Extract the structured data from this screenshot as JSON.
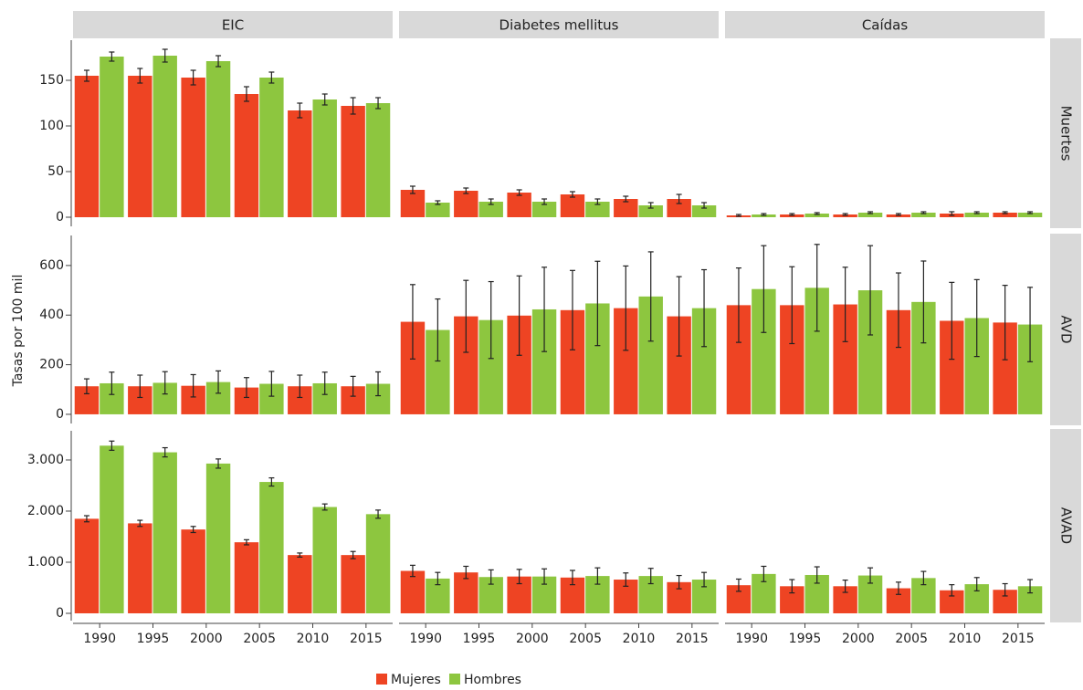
{
  "chart_data": {
    "type": "bar",
    "ylabel": "Tasas por 100 mil",
    "columns": [
      "EIC",
      "Diabetes mellitus",
      "Caídas"
    ],
    "categories": [
      "1990",
      "1995",
      "2000",
      "2005",
      "2010",
      "2015"
    ],
    "series": [
      {
        "name": "Mujeres",
        "color": "#ee4423"
      },
      {
        "name": "Hombres",
        "color": "#8dc63f"
      }
    ],
    "legend": "bottom",
    "rows": [
      {
        "label": "Muertes",
        "ylim": [
          -10,
          194
        ],
        "yticks": [
          0,
          50,
          100,
          150
        ]
      },
      {
        "label": "AVD",
        "ylim": [
          -37,
          721
        ],
        "yticks": [
          0,
          200,
          400,
          600
        ]
      },
      {
        "label": "AVAD",
        "ylim": [
          -143,
          3571
        ],
        "yticks": [
          0,
          {
            "value": 1000,
            "label": "1.000"
          },
          {
            "value": 2000,
            "label": "2.000"
          },
          {
            "value": 3000,
            "label": "3.000"
          }
        ]
      }
    ],
    "panels": [
      [
        {
          "values": [
            [
              155,
              155,
              153,
              135,
              117,
              122
            ],
            [
              176,
              177,
              171,
              153,
              129,
              125
            ]
          ],
          "errors": [
            [
              6,
              8,
              8,
              8,
              8,
              9
            ],
            [
              5,
              7,
              6,
              6,
              6,
              6
            ]
          ]
        },
        {
          "values": [
            [
              30,
              29,
              27,
              25,
              20,
              20
            ],
            [
              16,
              17,
              17,
              17,
              13,
              13
            ]
          ],
          "errors": [
            [
              4,
              3,
              3,
              3,
              3,
              5
            ],
            [
              2,
              3,
              3,
              3,
              3,
              3
            ]
          ]
        },
        {
          "values": [
            [
              2,
              3,
              3,
              3,
              4,
              5
            ],
            [
              3,
              4,
              5,
              5,
              5,
              5
            ]
          ],
          "errors": [
            [
              1,
              1,
              1,
              1,
              2,
              1
            ],
            [
              1,
              1,
              1,
              1,
              1,
              1
            ]
          ]
        }
      ],
      [
        {
          "values": [
            [
              113,
              113,
              115,
              108,
              113,
              113
            ],
            [
              125,
              127,
              130,
              123,
              125,
              123
            ]
          ],
          "errors": [
            [
              30,
              45,
              45,
              40,
              45,
              40
            ],
            [
              45,
              45,
              45,
              50,
              45,
              48
            ]
          ]
        },
        {
          "values": [
            [
              373,
              395,
              398,
              420,
              428,
              395
            ],
            [
              340,
              380,
              423,
              447,
              475,
              428
            ]
          ],
          "errors": [
            [
              150,
              145,
              160,
              160,
              170,
              160
            ],
            [
              125,
              155,
              170,
              170,
              180,
              155
            ]
          ]
        },
        {
          "values": [
            [
              440,
              440,
              443,
              420,
              377,
              370
            ],
            [
              505,
              510,
              500,
              453,
              388,
              362
            ]
          ],
          "errors": [
            [
              150,
              155,
              150,
              150,
              155,
              150
            ],
            [
              175,
              175,
              180,
              165,
              155,
              150
            ]
          ]
        }
      ],
      [
        {
          "values": [
            [
              1850,
              1760,
              1640,
              1390,
              1140,
              1140
            ],
            [
              3280,
              3150,
              2930,
              2570,
              2080,
              1940
            ]
          ],
          "errors": [
            [
              60,
              60,
              60,
              50,
              40,
              70
            ],
            [
              90,
              90,
              90,
              80,
              60,
              80
            ]
          ]
        },
        {
          "values": [
            [
              830,
              800,
              720,
              700,
              660,
              610
            ],
            [
              680,
              710,
              720,
              730,
              730,
              660
            ]
          ],
          "errors": [
            [
              110,
              120,
              140,
              140,
              130,
              130
            ],
            [
              120,
              140,
              150,
              160,
              150,
              140
            ]
          ]
        },
        {
          "values": [
            [
              550,
              530,
              530,
              490,
              450,
              460
            ],
            [
              770,
              750,
              740,
              690,
              570,
              530
            ]
          ],
          "errors": [
            [
              120,
              130,
              120,
              120,
              110,
              120
            ],
            [
              150,
              160,
              150,
              130,
              130,
              130
            ]
          ]
        }
      ]
    ]
  }
}
